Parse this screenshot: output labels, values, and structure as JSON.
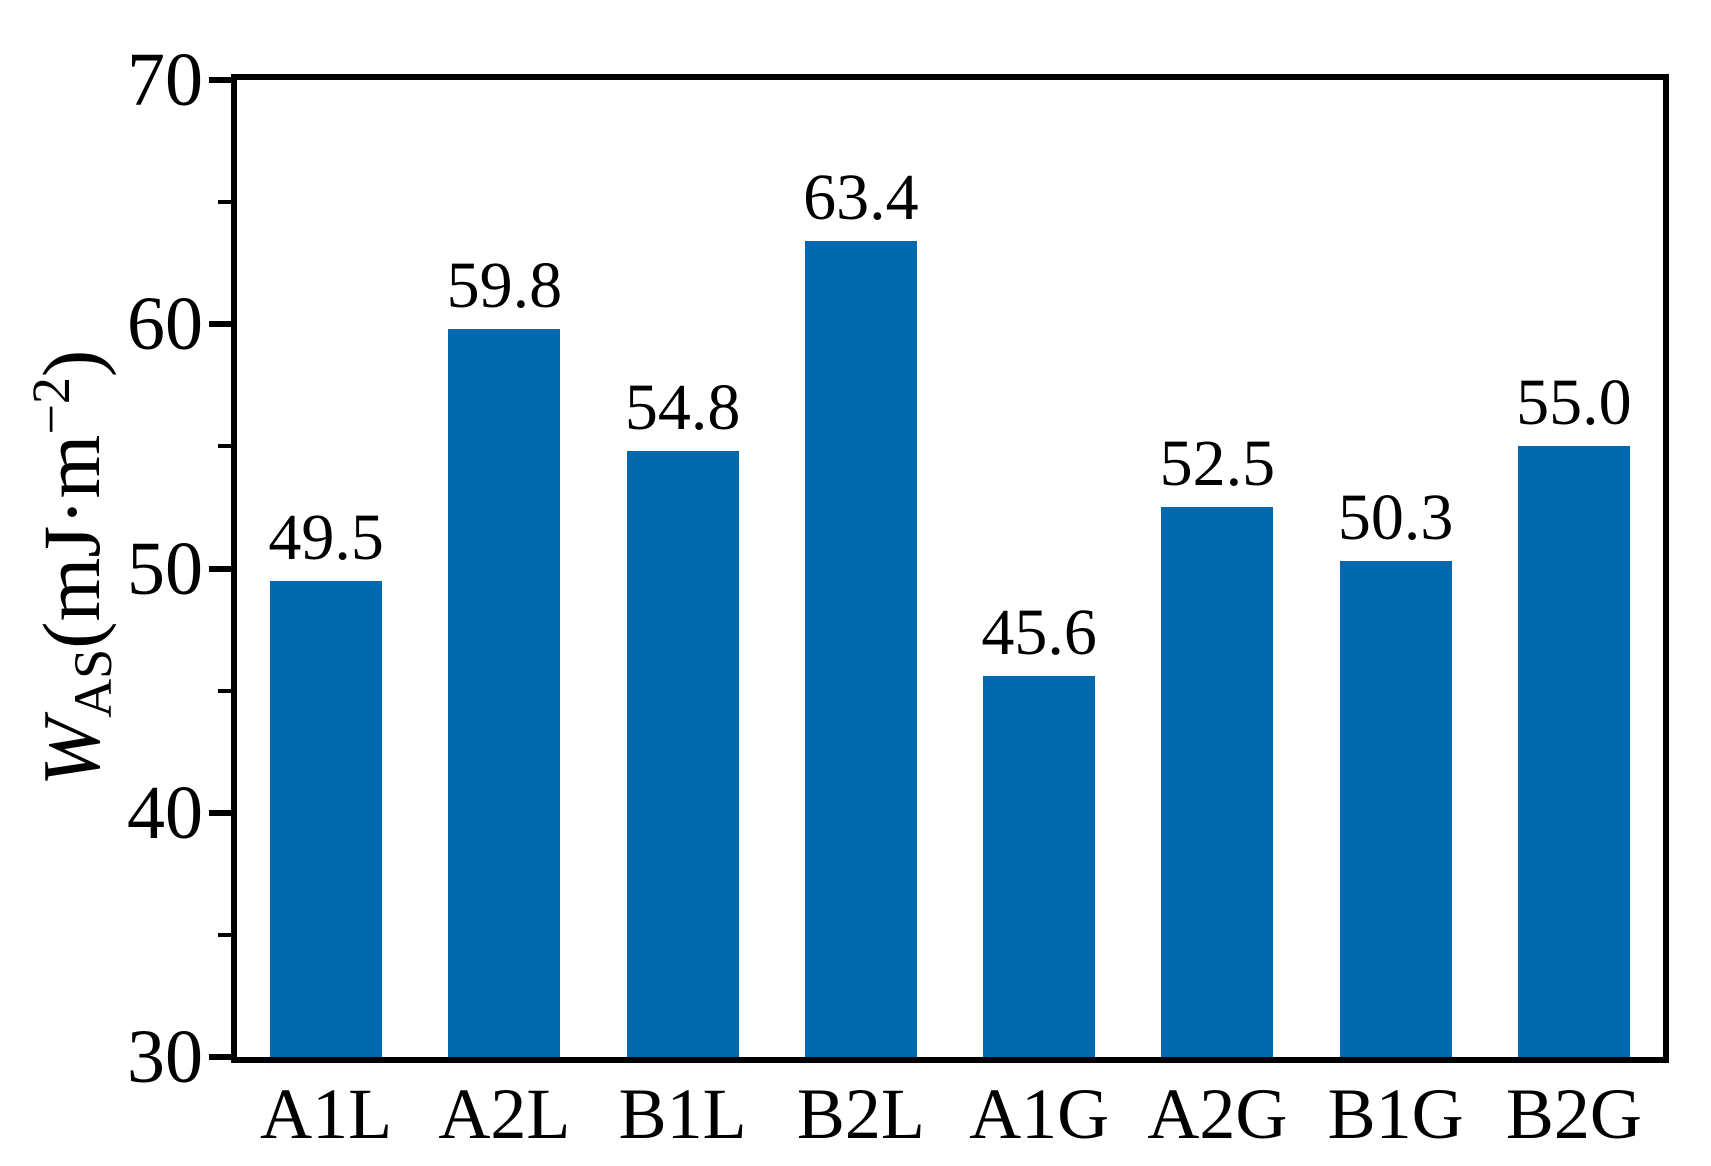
{
  "chart_data": {
    "type": "bar",
    "categories": [
      "A1L",
      "A2L",
      "B1L",
      "B2L",
      "A1G",
      "A2G",
      "B1G",
      "B2G"
    ],
    "values": [
      49.5,
      59.8,
      54.8,
      63.4,
      45.6,
      52.5,
      50.3,
      55.0
    ],
    "value_labels": [
      "49.5",
      "59.8",
      "54.8",
      "63.4",
      "45.6",
      "52.5",
      "50.3",
      "55.0"
    ],
    "title": "",
    "xlabel": "",
    "ylabel": "W_AS(mJ·m⁻²)",
    "ylabel_parts": {
      "variable": "W",
      "subscript": "AS",
      "unit_open": "(mJ·m",
      "exponent": "−2",
      "unit_close": ")"
    },
    "ylim": [
      30,
      70
    ],
    "yticks_major": [
      30,
      40,
      50,
      60,
      70
    ],
    "yticks_minor": [
      35,
      45,
      55,
      65
    ],
    "grid": false,
    "legend": null,
    "bar_color": "#0269AE",
    "axis_color": "#000000",
    "background_color": "#FFFFFF"
  }
}
